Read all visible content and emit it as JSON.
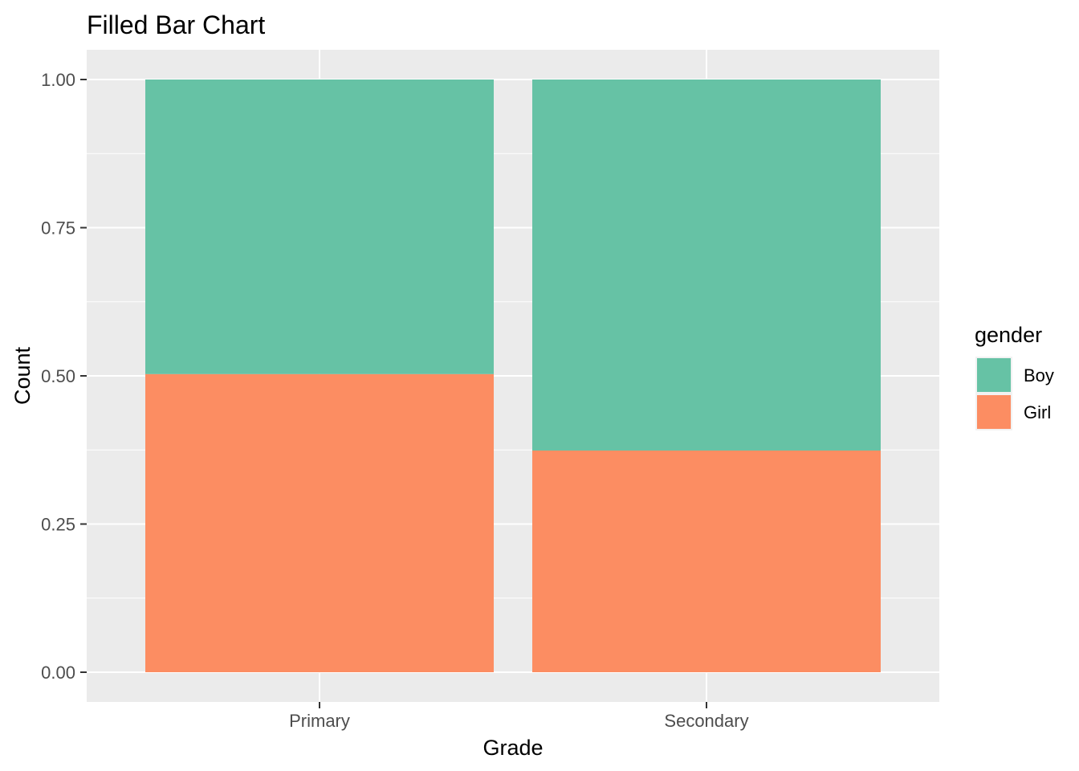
{
  "chart_data": {
    "type": "bar",
    "stacked": true,
    "position": "fill",
    "title": "Filled Bar Chart",
    "xlabel": "Grade",
    "ylabel": "Count",
    "categories": [
      "Primary",
      "Secondary"
    ],
    "series": [
      {
        "name": "Boy",
        "values": [
          0.497,
          0.626
        ],
        "color": "#66c2a5"
      },
      {
        "name": "Girl",
        "values": [
          0.503,
          0.374
        ],
        "color": "#fc8d62"
      }
    ],
    "ylim": [
      0,
      1
    ],
    "yticks": [
      0,
      0.25,
      0.5,
      0.75,
      1
    ],
    "ytick_labels": [
      "0.00",
      "0.25",
      "0.50",
      "0.75",
      "1.00"
    ],
    "legend": {
      "title": "gender",
      "placement": "right"
    },
    "grid": true,
    "panel_color": "#ebebeb",
    "grid_color": "#ffffff"
  }
}
